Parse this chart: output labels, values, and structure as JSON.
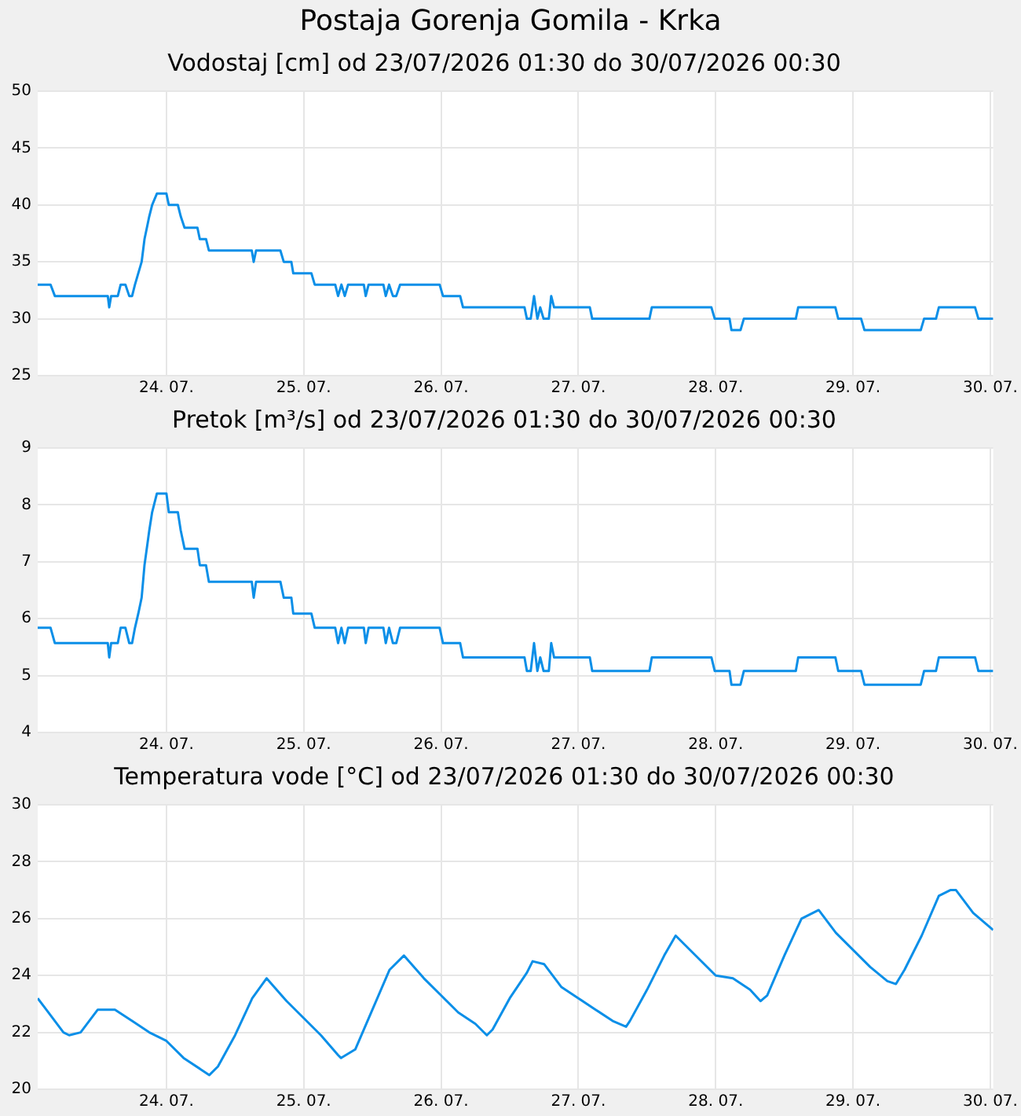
{
  "chart_data": [
    {
      "type": "line",
      "title": "Postaja Gorenja Gomila - Krka",
      "subtitle": "Vodostaj [cm] od 23/07/2026 01:30 do 30/07/2026 00:30",
      "color": "#0b8fe8",
      "grid": true,
      "x": [
        "2026-07-23T01:30",
        "2026-07-23T03:45",
        "2026-07-23T04:30",
        "2026-07-23T13:45",
        "2026-07-23T14:00",
        "2026-07-23T14:20",
        "2026-07-23T15:30",
        "2026-07-23T16:00",
        "2026-07-23T16:50",
        "2026-07-23T17:30",
        "2026-07-23T18:00",
        "2026-07-23T18:30",
        "2026-07-23T19:05",
        "2026-07-23T19:40",
        "2026-07-23T20:10",
        "2026-07-23T21:00",
        "2026-07-23T21:30",
        "2026-07-23T22:20",
        "2026-07-24T00:00",
        "2026-07-24T00:25",
        "2026-07-24T02:00",
        "2026-07-24T02:30",
        "2026-07-24T03:10",
        "2026-07-24T05:25",
        "2026-07-24T05:50",
        "2026-07-24T06:55",
        "2026-07-24T07:25",
        "2026-07-24T14:55",
        "2026-07-24T15:15",
        "2026-07-24T15:40",
        "2026-07-24T19:55",
        "2026-07-24T20:30",
        "2026-07-24T21:50",
        "2026-07-24T22:10",
        "2026-07-25T01:20",
        "2026-07-25T01:55",
        "2026-07-25T05:30",
        "2026-07-25T06:00",
        "2026-07-25T06:35",
        "2026-07-25T07:10",
        "2026-07-25T07:45",
        "2026-07-25T10:30",
        "2026-07-25T10:50",
        "2026-07-25T11:20",
        "2026-07-25T13:55",
        "2026-07-25T14:20",
        "2026-07-25T14:55",
        "2026-07-25T15:35",
        "2026-07-25T16:10",
        "2026-07-25T16:50",
        "2026-07-25T23:45",
        "2026-07-26T00:20",
        "2026-07-26T03:20",
        "2026-07-26T03:50",
        "2026-07-26T14:35",
        "2026-07-26T15:00",
        "2026-07-26T15:40",
        "2026-07-26T16:15",
        "2026-07-26T16:50",
        "2026-07-26T17:20",
        "2026-07-26T17:55",
        "2026-07-26T18:50",
        "2026-07-26T19:15",
        "2026-07-26T19:45",
        "2026-07-27T02:00",
        "2026-07-27T02:25",
        "2026-07-27T12:25",
        "2026-07-27T12:50",
        "2026-07-27T23:15",
        "2026-07-27T23:50",
        "2026-07-28T02:25",
        "2026-07-28T02:45",
        "2026-07-28T04:20",
        "2026-07-28T04:55",
        "2026-07-28T14:00",
        "2026-07-28T14:25",
        "2026-07-28T20:55",
        "2026-07-28T21:25",
        "2026-07-29T01:25",
        "2026-07-29T02:00",
        "2026-07-29T11:50",
        "2026-07-29T12:25",
        "2026-07-29T14:30",
        "2026-07-29T15:00",
        "2026-07-29T21:20",
        "2026-07-29T21:55",
        "2026-07-30T00:30"
      ],
      "values": [
        33,
        33,
        32,
        32,
        31,
        32,
        32,
        33,
        33,
        32,
        32,
        33,
        34,
        35,
        37,
        39,
        40,
        41,
        41,
        40,
        40,
        39,
        38,
        38,
        37,
        37,
        36,
        36,
        35,
        36,
        36,
        35,
        35,
        34,
        34,
        33,
        33,
        32,
        33,
        32,
        33,
        33,
        32,
        33,
        33,
        32,
        33,
        32,
        32,
        33,
        33,
        32,
        32,
        31,
        31,
        30,
        30,
        32,
        30,
        31,
        30,
        30,
        32,
        31,
        31,
        30,
        30,
        31,
        31,
        30,
        30,
        29,
        29,
        30,
        30,
        31,
        31,
        30,
        30,
        29,
        29,
        30,
        30,
        31,
        31,
        30,
        30
      ],
      "xlim": [
        "2026-07-23T01:30",
        "2026-07-30T00:30"
      ],
      "xticks": [
        {
          "value": "2026-07-24",
          "label": "24. 07."
        },
        {
          "value": "2026-07-25",
          "label": "25. 07."
        },
        {
          "value": "2026-07-26",
          "label": "26. 07."
        },
        {
          "value": "2026-07-27",
          "label": "27. 07."
        },
        {
          "value": "2026-07-28",
          "label": "28. 07."
        },
        {
          "value": "2026-07-29",
          "label": "29. 07."
        },
        {
          "value": "2026-07-30",
          "label": "30. 07."
        }
      ],
      "ylim": [
        25,
        50
      ],
      "yticks": [
        25,
        30,
        35,
        40,
        45,
        50
      ]
    },
    {
      "type": "line",
      "title": "Pretok [m³/s] od 23/07/2026 01:30 do 30/07/2026 00:30",
      "color": "#0b8fe8",
      "grid": true,
      "x": [
        "2026-07-23T01:30",
        "2026-07-23T03:45",
        "2026-07-23T04:30",
        "2026-07-23T13:45",
        "2026-07-23T14:00",
        "2026-07-23T14:20",
        "2026-07-23T15:30",
        "2026-07-23T16:00",
        "2026-07-23T16:50",
        "2026-07-23T17:30",
        "2026-07-23T18:00",
        "2026-07-23T18:30",
        "2026-07-23T19:05",
        "2026-07-23T19:40",
        "2026-07-23T20:10",
        "2026-07-23T21:00",
        "2026-07-23T21:30",
        "2026-07-23T22:20",
        "2026-07-24T00:00",
        "2026-07-24T00:25",
        "2026-07-24T02:00",
        "2026-07-24T02:30",
        "2026-07-24T03:10",
        "2026-07-24T05:25",
        "2026-07-24T05:50",
        "2026-07-24T06:55",
        "2026-07-24T07:25",
        "2026-07-24T14:55",
        "2026-07-24T15:15",
        "2026-07-24T15:40",
        "2026-07-24T19:55",
        "2026-07-24T20:30",
        "2026-07-24T21:50",
        "2026-07-24T22:10",
        "2026-07-25T01:20",
        "2026-07-25T01:55",
        "2026-07-25T05:30",
        "2026-07-25T06:00",
        "2026-07-25T06:35",
        "2026-07-25T07:10",
        "2026-07-25T07:45",
        "2026-07-25T10:30",
        "2026-07-25T10:50",
        "2026-07-25T11:20",
        "2026-07-25T13:55",
        "2026-07-25T14:20",
        "2026-07-25T14:55",
        "2026-07-25T15:35",
        "2026-07-25T16:10",
        "2026-07-25T16:50",
        "2026-07-25T23:45",
        "2026-07-26T00:20",
        "2026-07-26T03:20",
        "2026-07-26T03:50",
        "2026-07-26T14:35",
        "2026-07-26T15:00",
        "2026-07-26T15:40",
        "2026-07-26T16:15",
        "2026-07-26T16:50",
        "2026-07-26T17:20",
        "2026-07-26T17:55",
        "2026-07-26T18:50",
        "2026-07-26T19:15",
        "2026-07-26T19:45",
        "2026-07-27T02:00",
        "2026-07-27T02:25",
        "2026-07-27T12:25",
        "2026-07-27T12:50",
        "2026-07-27T23:15",
        "2026-07-27T23:50",
        "2026-07-28T02:25",
        "2026-07-28T02:45",
        "2026-07-28T04:20",
        "2026-07-28T04:55",
        "2026-07-28T14:00",
        "2026-07-28T14:25",
        "2026-07-28T20:55",
        "2026-07-28T21:25",
        "2026-07-29T01:25",
        "2026-07-29T02:00",
        "2026-07-29T11:50",
        "2026-07-29T12:25",
        "2026-07-29T14:30",
        "2026-07-29T15:00",
        "2026-07-29T21:20",
        "2026-07-29T21:55",
        "2026-07-30T00:30"
      ],
      "values": [
        5.84,
        5.84,
        5.57,
        5.57,
        5.32,
        5.57,
        5.57,
        5.84,
        5.84,
        5.57,
        5.57,
        5.84,
        6.09,
        6.37,
        6.94,
        7.55,
        7.87,
        8.2,
        8.2,
        7.87,
        7.87,
        7.55,
        7.23,
        7.23,
        6.94,
        6.94,
        6.65,
        6.65,
        6.37,
        6.65,
        6.65,
        6.37,
        6.37,
        6.09,
        6.09,
        5.84,
        5.84,
        5.57,
        5.84,
        5.57,
        5.84,
        5.84,
        5.57,
        5.84,
        5.84,
        5.57,
        5.84,
        5.57,
        5.57,
        5.84,
        5.84,
        5.57,
        5.57,
        5.32,
        5.32,
        5.08,
        5.08,
        5.57,
        5.08,
        5.32,
        5.08,
        5.08,
        5.57,
        5.32,
        5.32,
        5.08,
        5.08,
        5.32,
        5.32,
        5.08,
        5.08,
        4.84,
        4.84,
        5.08,
        5.08,
        5.32,
        5.32,
        5.08,
        5.08,
        4.84,
        4.84,
        5.08,
        5.08,
        5.32,
        5.32,
        5.08,
        5.08
      ],
      "xlim": [
        "2026-07-23T01:30",
        "2026-07-30T00:30"
      ],
      "xticks": [
        {
          "value": "2026-07-24",
          "label": "24. 07."
        },
        {
          "value": "2026-07-25",
          "label": "25. 07."
        },
        {
          "value": "2026-07-26",
          "label": "26. 07."
        },
        {
          "value": "2026-07-27",
          "label": "27. 07."
        },
        {
          "value": "2026-07-28",
          "label": "28. 07."
        },
        {
          "value": "2026-07-29",
          "label": "29. 07."
        },
        {
          "value": "2026-07-30",
          "label": "30. 07."
        }
      ],
      "ylim": [
        4,
        9
      ],
      "yticks": [
        4,
        5,
        6,
        7,
        8,
        9
      ]
    },
    {
      "type": "line",
      "title": "Temperatura vode [°C] od 23/07/2026 01:30 do 30/07/2026 00:30",
      "color": "#0b8fe8",
      "grid": true,
      "x": [
        "2026-07-23T01:30",
        "2026-07-23T03:00",
        "2026-07-23T06:00",
        "2026-07-23T07:00",
        "2026-07-23T09:00",
        "2026-07-23T12:00",
        "2026-07-23T15:00",
        "2026-07-23T18:00",
        "2026-07-23T21:00",
        "2026-07-24T00:00",
        "2026-07-24T03:00",
        "2026-07-24T06:00",
        "2026-07-24T07:30",
        "2026-07-24T09:00",
        "2026-07-24T12:00",
        "2026-07-24T15:00",
        "2026-07-24T17:30",
        "2026-07-24T21:00",
        "2026-07-25T00:00",
        "2026-07-25T03:00",
        "2026-07-25T06:00",
        "2026-07-25T06:30",
        "2026-07-25T09:00",
        "2026-07-25T12:00",
        "2026-07-25T15:00",
        "2026-07-25T17:30",
        "2026-07-25T21:00",
        "2026-07-26T00:00",
        "2026-07-26T03:00",
        "2026-07-26T06:00",
        "2026-07-26T08:00",
        "2026-07-26T09:00",
        "2026-07-26T12:00",
        "2026-07-26T15:00",
        "2026-07-26T16:00",
        "2026-07-26T18:00",
        "2026-07-26T21:00",
        "2026-07-27T00:00",
        "2026-07-27T03:00",
        "2026-07-27T06:00",
        "2026-07-27T08:20",
        "2026-07-27T09:00",
        "2026-07-27T12:00",
        "2026-07-27T15:00",
        "2026-07-27T17:00",
        "2026-07-27T21:00",
        "2026-07-28T00:00",
        "2026-07-28T03:00",
        "2026-07-28T06:00",
        "2026-07-28T07:50",
        "2026-07-28T09:00",
        "2026-07-28T12:00",
        "2026-07-28T15:00",
        "2026-07-28T18:00",
        "2026-07-28T21:00",
        "2026-07-29T00:00",
        "2026-07-29T03:00",
        "2026-07-29T06:00",
        "2026-07-29T07:30",
        "2026-07-29T09:00",
        "2026-07-29T12:00",
        "2026-07-29T15:00",
        "2026-07-29T17:00",
        "2026-07-29T18:00",
        "2026-07-29T21:00",
        "2026-07-30T00:30"
      ],
      "values": [
        23.2,
        22.8,
        22.0,
        21.9,
        22.0,
        22.8,
        22.8,
        22.4,
        22.0,
        21.7,
        21.1,
        20.7,
        20.5,
        20.8,
        21.9,
        23.2,
        23.9,
        23.1,
        22.5,
        21.9,
        21.2,
        21.1,
        21.4,
        22.8,
        24.2,
        24.7,
        23.9,
        23.3,
        22.7,
        22.3,
        21.9,
        22.1,
        23.2,
        24.1,
        24.5,
        24.4,
        23.6,
        23.2,
        22.8,
        22.4,
        22.2,
        22.4,
        23.5,
        24.7,
        25.4,
        24.6,
        24.0,
        23.9,
        23.5,
        23.1,
        23.3,
        24.7,
        26.0,
        26.3,
        25.5,
        24.9,
        24.3,
        23.8,
        23.7,
        24.2,
        25.4,
        26.8,
        27.0,
        27.0,
        26.2,
        25.6
      ],
      "xlim": [
        "2026-07-23T01:30",
        "2026-07-30T00:30"
      ],
      "xticks": [
        {
          "value": "2026-07-24",
          "label": "24. 07."
        },
        {
          "value": "2026-07-25",
          "label": "25. 07."
        },
        {
          "value": "2026-07-26",
          "label": "26. 07."
        },
        {
          "value": "2026-07-27",
          "label": "27. 07."
        },
        {
          "value": "2026-07-28",
          "label": "28. 07."
        },
        {
          "value": "2026-07-29",
          "label": "29. 07."
        },
        {
          "value": "2026-07-30",
          "label": "30. 07."
        }
      ],
      "ylim": [
        20,
        30
      ],
      "yticks": [
        20,
        22,
        24,
        26,
        28,
        30
      ]
    }
  ]
}
